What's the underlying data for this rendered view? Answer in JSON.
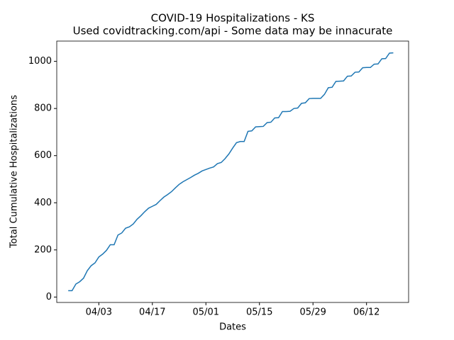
{
  "chart_data": {
    "type": "line",
    "title": "COVID-19 Hospitalizations - KS",
    "subtitle": "Used covidtracking.com/api - Some data may be innacurate",
    "xlabel": "Dates",
    "ylabel": "Total Cumulative Hospitalizations",
    "x": [
      "03/26",
      "03/27",
      "03/28",
      "03/29",
      "03/30",
      "03/31",
      "04/01",
      "04/02",
      "04/03",
      "04/04",
      "04/05",
      "04/06",
      "04/07",
      "04/08",
      "04/09",
      "04/10",
      "04/11",
      "04/12",
      "04/13",
      "04/14",
      "04/15",
      "04/16",
      "04/17",
      "04/18",
      "04/19",
      "04/20",
      "04/21",
      "04/22",
      "04/23",
      "04/24",
      "04/25",
      "04/26",
      "04/27",
      "04/28",
      "04/29",
      "04/30",
      "05/01",
      "05/02",
      "05/03",
      "05/04",
      "05/05",
      "05/06",
      "05/07",
      "05/08",
      "05/09",
      "05/10",
      "05/11",
      "05/12",
      "05/13",
      "05/14",
      "05/15",
      "05/16",
      "05/17",
      "05/18",
      "05/19",
      "05/20",
      "05/21",
      "05/22",
      "05/23",
      "05/24",
      "05/25",
      "05/26",
      "05/27",
      "05/28",
      "05/29",
      "05/30",
      "05/31",
      "06/01",
      "06/02",
      "06/03",
      "06/04",
      "06/05",
      "06/06",
      "06/07",
      "06/08",
      "06/09",
      "06/10",
      "06/11",
      "06/12",
      "06/13",
      "06/14",
      "06/15",
      "06/16",
      "06/17",
      "06/18",
      "06/19"
    ],
    "series": [
      {
        "name": "KS",
        "color": "#1f77b4",
        "values": [
          27,
          27,
          55,
          65,
          80,
          112,
          133,
          145,
          170,
          182,
          198,
          222,
          222,
          263,
          272,
          292,
          298,
          310,
          330,
          345,
          362,
          377,
          385,
          393,
          409,
          424,
          435,
          447,
          463,
          478,
          489,
          498,
          507,
          517,
          525,
          535,
          541,
          547,
          552,
          566,
          571,
          587,
          607,
          632,
          655,
          660,
          660,
          703,
          705,
          722,
          723,
          724,
          740,
          742,
          760,
          761,
          787,
          787,
          788,
          800,
          802,
          822,
          824,
          842,
          843,
          843,
          843,
          860,
          888,
          890,
          915,
          916,
          917,
          937,
          938,
          954,
          955,
          973,
          974,
          974,
          988,
          989,
          1011,
          1012,
          1035,
          1036
        ]
      }
    ],
    "xlim": [
      "03/23",
      "06/23"
    ],
    "xticks": [
      "04/03",
      "04/17",
      "05/01",
      "05/15",
      "05/29",
      "06/12"
    ],
    "ylim": [
      -23,
      1086
    ],
    "yticks": [
      0,
      200,
      400,
      600,
      800,
      1000
    ]
  }
}
